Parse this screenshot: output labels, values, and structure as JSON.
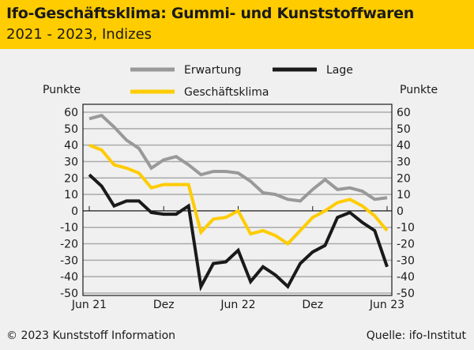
{
  "header": {
    "title": "Ifo-Geschäftsklima: Gummi- und Kunststoffwaren",
    "subtitle": "2021 - 2023, Indizes"
  },
  "footer": {
    "copyright": "© 2023 Kunststoff Information",
    "source": "Quelle: ifo-Institut"
  },
  "chart_data": {
    "type": "line",
    "title": "Ifo-Geschäftsklima: Gummi- und Kunststoffwaren",
    "ylabel_left": "Punkte",
    "ylabel_right": "Punkte",
    "ylim": [
      -50,
      60
    ],
    "yticks": [
      60,
      50,
      40,
      30,
      20,
      10,
      0,
      -10,
      -20,
      -30,
      -40,
      -50
    ],
    "xticks": [
      {
        "label": "Jun 21",
        "index": 0
      },
      {
        "label": "Dez",
        "index": 6
      },
      {
        "label": "Jun 22",
        "index": 12
      },
      {
        "label": "Dez",
        "index": 18
      },
      {
        "label": "Jun 23",
        "index": 24
      }
    ],
    "x": [
      "Jun 21",
      "Jul 21",
      "Aug 21",
      "Sep 21",
      "Okt 21",
      "Nov 21",
      "Dez 21",
      "Jan 22",
      "Feb 22",
      "Mär 22",
      "Apr 22",
      "Mai 22",
      "Jun 22",
      "Jul 22",
      "Aug 22",
      "Sep 22",
      "Okt 22",
      "Nov 22",
      "Dez 22",
      "Jan 23",
      "Feb 23",
      "Mär 23",
      "Apr 23",
      "Mai 23",
      "Jun 23"
    ],
    "series": [
      {
        "name": "Erwartung",
        "color": "#999999",
        "values": [
          56,
          58,
          51,
          43,
          38,
          26,
          31,
          33,
          28,
          22,
          24,
          24,
          23,
          18,
          11,
          10,
          7,
          6,
          13,
          19,
          13,
          14,
          12,
          7,
          8
        ]
      },
      {
        "name": "Lage",
        "color": "#1a1a1a",
        "values": [
          22,
          15,
          3,
          6,
          6,
          -1,
          -2,
          -2,
          3,
          -46,
          -32,
          -31,
          -24,
          -43,
          -34,
          -39,
          -46,
          -32,
          -25,
          -21,
          -4,
          -1,
          -7,
          -12,
          -34
        ]
      },
      {
        "name": "Geschäftsklima",
        "color": "#ffcc00",
        "values": [
          40,
          37,
          28,
          26,
          23,
          14,
          16,
          16,
          16,
          -13,
          -5,
          -4,
          0,
          -14,
          -12,
          -15,
          -20,
          -12,
          -4,
          0,
          5,
          7,
          3,
          -3,
          -12
        ]
      }
    ]
  }
}
